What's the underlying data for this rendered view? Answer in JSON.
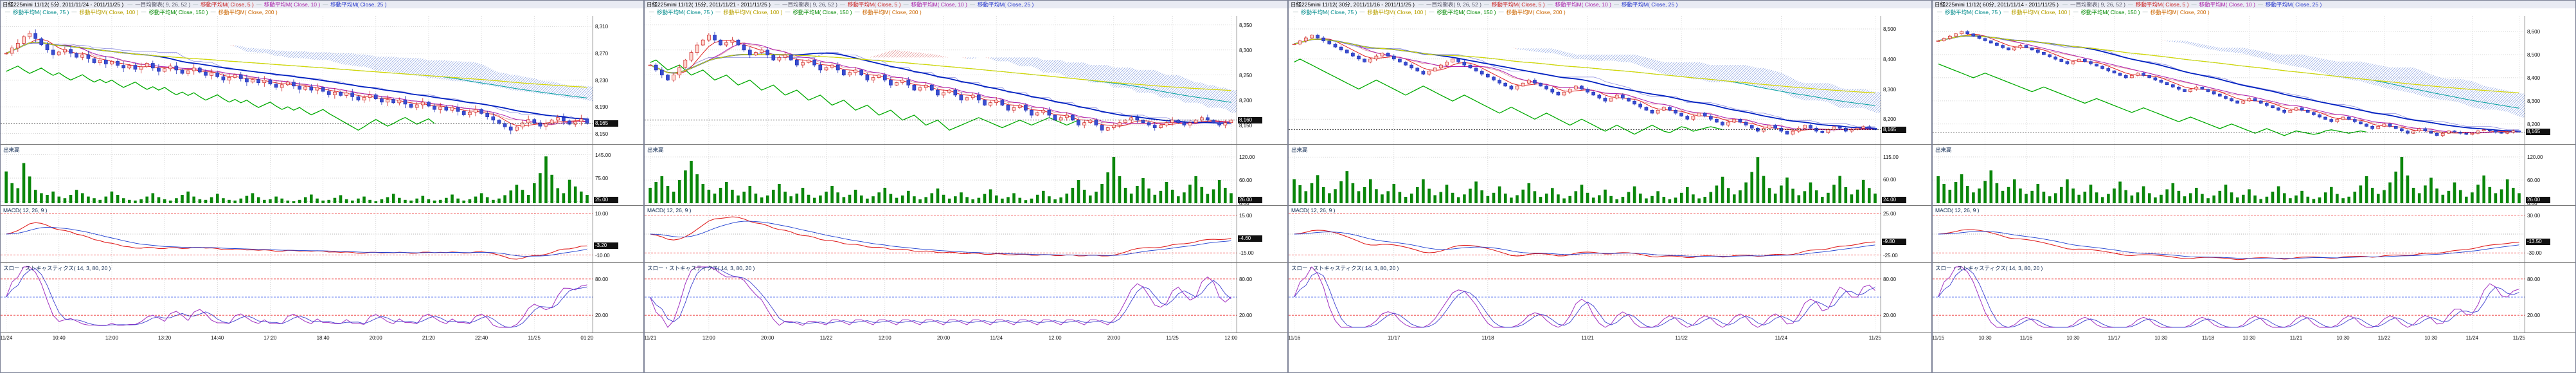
{
  "colors": {
    "panel_border": "#7c8296",
    "grid": "#c8c8c8",
    "candle_up_stroke": "#cc2020",
    "candle_up_fill": "#ffd8d0",
    "candle_down_stroke": "#2030b8",
    "candle_down_fill": "#3a4ed0",
    "volume_bar": "#0a860a",
    "macd_line": "#e02020",
    "signal_line": "#2040d0",
    "stoch_k": "#a030c0",
    "stoch_d": "#4040d0",
    "chikou": "#00aa00",
    "tenkan": "#e09090",
    "kijun": "#9090e0",
    "cloud_bull_hatch": "#e08888",
    "cloud_bear_hatch": "#88a0e0",
    "ref_line": "#ee3333",
    "ref_line_mid": "#3355ee",
    "last_price_line": "#222222",
    "badge_bg": "#111111",
    "badge_fg": "#ffffff"
  },
  "legend": {
    "row1": [
      {
        "label": "一目均衡表( 9, 26, 52 )",
        "color": "#555566"
      },
      {
        "label": "移動平均M( Close, 5 )",
        "color": "#cc2222"
      },
      {
        "label": "移動平均M( Close, 10 )",
        "color": "#aa22aa"
      },
      {
        "label": "移動平均M( Close, 25 )",
        "color": "#2233cc"
      }
    ],
    "row2": [
      {
        "label": "移動平均M( Close, 75 )",
        "color": "#008b8b"
      },
      {
        "label": "移動平均M( Close, 100 )",
        "color": "#b8a000"
      },
      {
        "label": "移動平均M( Close, 150 )",
        "color": "#008800"
      },
      {
        "label": "移動平均M( Close, 200 )",
        "color": "#cc6600"
      }
    ]
  },
  "section_labels": {
    "volume": "出来高",
    "macd": "MACD( 12, 26, 9 )",
    "stoch": "スロー・ストキャスティクス( 14, 3, 80, 20 )"
  },
  "ma_overlays": [
    {
      "period": 5,
      "color": "#e02222",
      "width": 1
    },
    {
      "period": 10,
      "color": "#b020b0",
      "width": 1
    },
    {
      "period": 25,
      "color": "#0020c0",
      "width": 1.8
    },
    {
      "period": 75,
      "color": "#00a0a0",
      "width": 1
    },
    {
      "period": 100,
      "color": "#d8d800",
      "width": 1.2
    }
  ],
  "panels": [
    {
      "title": "日経225mini 11/12( 5分, 2011/11/24 - 2011/11/25 )",
      "badges": {
        "price": "8,165",
        "volume": "25.00",
        "macd": "-3.20"
      },
      "axes": {
        "price_labels": [
          "8,310",
          "8,270",
          "8,230",
          "8,190",
          "8,150"
        ],
        "volume_labels": [
          "145.00",
          "75.00",
          "5.00"
        ],
        "macd_labels": [
          "10.00",
          "-10.00"
        ],
        "stoch_labels": [
          "80.00",
          "20.00"
        ]
      }
    },
    {
      "title": "日経225mini 11/12( 15分, 2011/11/21 - 2011/11/25 )",
      "badges": {
        "price": "8,160",
        "volume": "26.00",
        "macd": "-4.60"
      },
      "axes": {
        "price_labels": [
          "8,350",
          "8,300",
          "8,250",
          "8,200",
          "8,150"
        ],
        "volume_labels": [
          "120.00",
          "60.00",
          "0.00"
        ],
        "macd_labels": [
          "15.00",
          "-15.00"
        ],
        "stoch_labels": [
          "80.00",
          "20.00"
        ]
      }
    },
    {
      "title": "日経225mini 11/12( 30分, 2011/11/16 - 2011/11/25 )",
      "badges": {
        "price": "8,165",
        "volume": "24.00",
        "macd": "-9.80"
      },
      "axes": {
        "price_labels": [
          "8,500",
          "8,400",
          "8,300",
          "8,200"
        ],
        "volume_labels": [
          "115.00",
          "60.00",
          "5.00"
        ],
        "macd_labels": [
          "25.00",
          "-25.00"
        ],
        "stoch_labels": [
          "80.00",
          "20.00"
        ]
      }
    },
    {
      "title": "日経225mini 11/12( 60分, 2011/11/14 - 2011/11/25 )",
      "badges": {
        "price": "8,165",
        "volume": "26.00",
        "macd": "-13.50"
      },
      "axes": {
        "price_labels": [
          "8,600",
          "8,500",
          "8,400",
          "8,300",
          "8,200"
        ],
        "volume_labels": [
          "120.00",
          "60.00",
          "0.00"
        ],
        "macd_labels": [
          "30.00",
          "-30.00"
        ],
        "stoch_labels": [
          "80.00",
          "20.00"
        ]
      }
    }
  ],
  "chart_data": [
    {
      "type": "candlestick",
      "title": "日経225mini 11/12( 5分, 2011/11/24 - 2011/11/25 )",
      "x_labels": [
        "11/24",
        "10:40",
        "12:00",
        "13:20",
        "14:40",
        "17:20",
        "18:40",
        "20:00",
        "21:20",
        "22:40",
        "11/25",
        "01:20"
      ],
      "ylim": [
        8140,
        8320
      ],
      "y_ticks": [
        8310,
        8270,
        8230,
        8190,
        8150
      ],
      "close": [
        8270,
        8278,
        8285,
        8295,
        8300,
        8292,
        8283,
        8275,
        8268,
        8272,
        8276,
        8270,
        8264,
        8268,
        8262,
        8256,
        8260,
        8254,
        8258,
        8252,
        8248,
        8252,
        8246,
        8250,
        8255,
        8248,
        8243,
        8247,
        8251,
        8245,
        8240,
        8244,
        8248,
        8242,
        8237,
        8241,
        8235,
        8230,
        8234,
        8238,
        8232,
        8227,
        8231,
        8226,
        8230,
        8224,
        8219,
        8223,
        8227,
        8221,
        8216,
        8220,
        8215,
        8219,
        8213,
        8208,
        8212,
        8207,
        8211,
        8205,
        8200,
        8204,
        8208,
        8202,
        8197,
        8201,
        8196,
        8200,
        8194,
        8189,
        8193,
        8197,
        8191,
        8186,
        8190,
        8185,
        8189,
        8183,
        8178,
        8182,
        8186,
        8180,
        8175,
        8170,
        8165,
        8160,
        8155,
        8160,
        8166,
        8171,
        8166,
        8161,
        8165,
        8170,
        8174,
        8169,
        8164,
        8168,
        8172,
        8165
      ],
      "volume": [
        95,
        60,
        45,
        120,
        80,
        40,
        30,
        25,
        35,
        20,
        15,
        25,
        40,
        30,
        20,
        15,
        10,
        20,
        35,
        25,
        15,
        10,
        8,
        12,
        20,
        30,
        18,
        12,
        8,
        15,
        25,
        35,
        20,
        12,
        10,
        18,
        28,
        15,
        10,
        8,
        14,
        22,
        30,
        18,
        10,
        12,
        20,
        14,
        8,
        6,
        10,
        18,
        26,
        14,
        8,
        10,
        16,
        24,
        12,
        8,
        14,
        20,
        10,
        6,
        12,
        18,
        28,
        16,
        10,
        8,
        14,
        22,
        12,
        8,
        10,
        16,
        26,
        14,
        8,
        12,
        20,
        30,
        18,
        10,
        14,
        24,
        38,
        55,
        40,
        25,
        60,
        90,
        140,
        85,
        45,
        30,
        70,
        50,
        35,
        25
      ],
      "volume_ylim": [
        0,
        150
      ],
      "volume_ticks": [
        145,
        75,
        5
      ],
      "macd_ylim": [
        -12,
        12
      ],
      "macd_ticks": [
        10,
        -10
      ],
      "stoch_ticks": [
        80,
        20
      ]
    },
    {
      "type": "candlestick",
      "title": "日経225mini 11/12( 15分, 2011/11/21 - 2011/11/25 )",
      "x_labels": [
        "11/21",
        "12:00",
        "20:00",
        "11/22",
        "12:00",
        "20:00",
        "11/24",
        "12:00",
        "20:00",
        "11/25",
        "12:00"
      ],
      "ylim": [
        8120,
        8360
      ],
      "y_ticks": [
        8350,
        8300,
        8250,
        8200,
        8150
      ],
      "close": [
        8270,
        8260,
        8250,
        8240,
        8250,
        8265,
        8280,
        8295,
        8310,
        8320,
        8330,
        8320,
        8310,
        8315,
        8320,
        8310,
        8300,
        8290,
        8295,
        8300,
        8290,
        8280,
        8285,
        8290,
        8280,
        8270,
        8275,
        8280,
        8270,
        8260,
        8265,
        8270,
        8260,
        8250,
        8255,
        8260,
        8250,
        8240,
        8245,
        8250,
        8240,
        8230,
        8235,
        8240,
        8230,
        8220,
        8225,
        8230,
        8220,
        8210,
        8215,
        8220,
        8210,
        8200,
        8205,
        8210,
        8200,
        8190,
        8195,
        8200,
        8190,
        8180,
        8185,
        8190,
        8180,
        8170,
        8175,
        8180,
        8170,
        8160,
        8165,
        8170,
        8160,
        8150,
        8155,
        8160,
        8150,
        8140,
        8145,
        8150,
        8155,
        8160,
        8165,
        8160,
        8155,
        8150,
        8145,
        8150,
        8155,
        8160,
        8155,
        8150,
        8155,
        8160,
        8165,
        8160,
        8155,
        8150,
        8155,
        8160
      ],
      "volume": [
        40,
        55,
        70,
        45,
        30,
        60,
        85,
        110,
        75,
        50,
        35,
        25,
        40,
        55,
        35,
        20,
        30,
        45,
        25,
        15,
        20,
        35,
        50,
        30,
        18,
        25,
        40,
        22,
        14,
        20,
        30,
        45,
        28,
        16,
        22,
        35,
        20,
        12,
        18,
        28,
        40,
        24,
        14,
        20,
        32,
        18,
        10,
        16,
        26,
        38,
        22,
        12,
        18,
        28,
        16,
        10,
        14,
        24,
        36,
        20,
        12,
        16,
        26,
        14,
        8,
        12,
        22,
        32,
        18,
        10,
        15,
        25,
        40,
        60,
        35,
        20,
        30,
        50,
        80,
        120,
        70,
        40,
        25,
        45,
        65,
        38,
        22,
        32,
        55,
        35,
        18,
        28,
        48,
        70,
        42,
        24,
        36,
        60,
        40,
        26
      ],
      "volume_ylim": [
        0,
        130
      ],
      "volume_ticks": [
        120,
        60,
        0
      ],
      "macd_ylim": [
        -20,
        20
      ],
      "macd_ticks": [
        15,
        -15
      ],
      "stoch_ticks": [
        80,
        20
      ]
    },
    {
      "type": "candlestick",
      "title": "日経225mini 11/12( 30分, 2011/11/16 - 2011/11/25 )",
      "x_labels": [
        "11/16",
        "11/17",
        "11/18",
        "11/21",
        "11/22",
        "11/24",
        "11/25"
      ],
      "ylim": [
        8130,
        8530
      ],
      "y_ticks": [
        8500,
        8400,
        8300,
        8200
      ],
      "close": [
        8450,
        8460,
        8470,
        8480,
        8470,
        8460,
        8450,
        8440,
        8430,
        8420,
        8410,
        8400,
        8390,
        8400,
        8410,
        8420,
        8410,
        8400,
        8390,
        8380,
        8370,
        8360,
        8350,
        8360,
        8370,
        8380,
        8390,
        8400,
        8390,
        8380,
        8370,
        8360,
        8350,
        8340,
        8330,
        8320,
        8310,
        8300,
        8310,
        8320,
        8330,
        8320,
        8310,
        8300,
        8290,
        8280,
        8290,
        8300,
        8310,
        8300,
        8290,
        8280,
        8270,
        8260,
        8270,
        8280,
        8270,
        8260,
        8250,
        8240,
        8230,
        8220,
        8230,
        8240,
        8230,
        8220,
        8210,
        8200,
        8210,
        8220,
        8210,
        8200,
        8190,
        8180,
        8190,
        8200,
        8190,
        8180,
        8170,
        8160,
        8170,
        8180,
        8170,
        8160,
        8150,
        8160,
        8170,
        8180,
        8170,
        8160,
        8155,
        8165,
        8175,
        8170,
        8160,
        8165,
        8170,
        8175,
        8170,
        8165
      ],
      "volume": [
        60,
        45,
        30,
        50,
        70,
        40,
        25,
        35,
        55,
        80,
        50,
        30,
        40,
        60,
        35,
        22,
        30,
        48,
        28,
        16,
        24,
        40,
        60,
        36,
        20,
        28,
        46,
        26,
        15,
        22,
        36,
        54,
        32,
        18,
        26,
        42,
        24,
        14,
        20,
        34,
        50,
        30,
        16,
        24,
        38,
        22,
        12,
        18,
        30,
        46,
        26,
        14,
        20,
        34,
        18,
        10,
        16,
        28,
        42,
        24,
        12,
        18,
        30,
        16,
        10,
        14,
        26,
        40,
        22,
        12,
        16,
        28,
        44,
        66,
        38,
        22,
        32,
        52,
        78,
        115,
        68,
        38,
        24,
        44,
        64,
        36,
        20,
        30,
        52,
        32,
        16,
        26,
        46,
        68,
        40,
        22,
        34,
        58,
        38,
        24
      ],
      "volume_ylim": [
        0,
        125
      ],
      "volume_ticks": [
        115,
        60,
        5
      ],
      "macd_ylim": [
        -30,
        30
      ],
      "macd_ticks": [
        25,
        -25
      ],
      "stoch_ticks": [
        80,
        20
      ]
    },
    {
      "type": "candlestick",
      "title": "日経225mini 11/12( 60分, 2011/11/14 - 2011/11/25 )",
      "x_labels": [
        "11/15",
        "10:30",
        "11/16",
        "10:30",
        "11/17",
        "10:30",
        "11/18",
        "10:30",
        "11/21",
        "10:30",
        "11/22",
        "10:30",
        "11/24",
        "11/25"
      ],
      "ylim": [
        8130,
        8650
      ],
      "y_ticks": [
        8600,
        8500,
        8400,
        8300,
        8200
      ],
      "close": [
        8560,
        8570,
        8580,
        8590,
        8600,
        8590,
        8580,
        8570,
        8560,
        8550,
        8540,
        8530,
        8520,
        8530,
        8540,
        8530,
        8520,
        8510,
        8500,
        8490,
        8480,
        8470,
        8460,
        8470,
        8480,
        8470,
        8460,
        8450,
        8440,
        8430,
        8420,
        8410,
        8400,
        8410,
        8420,
        8410,
        8400,
        8390,
        8380,
        8370,
        8360,
        8350,
        8340,
        8350,
        8360,
        8350,
        8340,
        8330,
        8320,
        8310,
        8300,
        8290,
        8300,
        8310,
        8300,
        8290,
        8280,
        8270,
        8260,
        8250,
        8260,
        8270,
        8260,
        8250,
        8240,
        8230,
        8220,
        8210,
        8220,
        8230,
        8220,
        8210,
        8200,
        8190,
        8180,
        8190,
        8200,
        8190,
        8180,
        8170,
        8160,
        8170,
        8180,
        8170,
        8160,
        8150,
        8160,
        8170,
        8165,
        8160,
        8155,
        8160,
        8170,
        8175,
        8170,
        8165,
        8160,
        8165,
        8170,
        8165
      ],
      "volume": [
        70,
        50,
        35,
        55,
        75,
        45,
        28,
        38,
        58,
        85,
        52,
        32,
        42,
        62,
        38,
        24,
        32,
        50,
        30,
        18,
        26,
        42,
        62,
        38,
        22,
        30,
        48,
        28,
        16,
        24,
        38,
        56,
        34,
        20,
        28,
        44,
        26,
        15,
        22,
        36,
        52,
        32,
        18,
        26,
        40,
        24,
        13,
        20,
        32,
        48,
        28,
        15,
        22,
        36,
        20,
        11,
        17,
        30,
        44,
        26,
        13,
        20,
        32,
        17,
        11,
        15,
        28,
        42,
        24,
        13,
        17,
        30,
        46,
        70,
        40,
        24,
        34,
        54,
        82,
        120,
        72,
        40,
        26,
        46,
        66,
        38,
        22,
        32,
        54,
        34,
        17,
        28,
        48,
        72,
        42,
        26,
        36,
        62,
        40,
        26
      ],
      "volume_ylim": [
        0,
        130
      ],
      "volume_ticks": [
        120,
        60,
        0
      ],
      "macd_ylim": [
        -40,
        40
      ],
      "macd_ticks": [
        30,
        -30
      ],
      "stoch_ticks": [
        80,
        20
      ]
    }
  ]
}
